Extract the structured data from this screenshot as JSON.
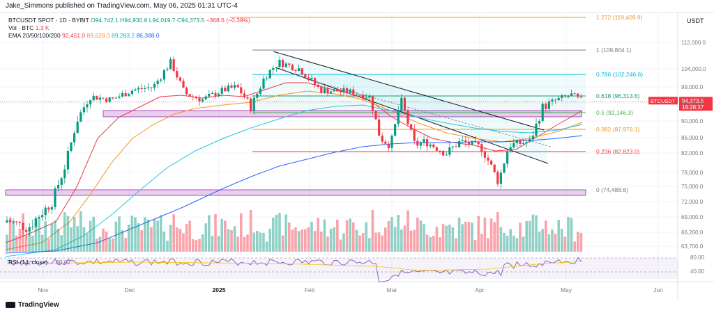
{
  "header": {
    "publisher": "Jake_Simmons published on TradingView.com, May 06, 2025 01:31 UTC-4"
  },
  "legend": {
    "symbol": "BTCUSDT SPOT · 1D · BYBIT",
    "open": "O94,742.1",
    "high": "H94,930.8",
    "low": "L94,019.7",
    "close": "C94,373.5",
    "change": "−368.6 (−0.39%)",
    "vol_label": "Vol · BTC",
    "vol_value": "1.3 K",
    "ema_label": "EMA 20/50/100/200",
    "ema20": "92,451.0",
    "ema50": "89,628.0",
    "ema100": "89,283.2",
    "ema200": "86,388.0"
  },
  "price_axis": {
    "currency": "USDT",
    "labels": [
      "112,000.0",
      "104,000.0",
      "99,000.0",
      "94,000.0",
      "90,000.0",
      "86,000.0",
      "82,000.0",
      "78,000.0",
      "75,000.0",
      "72,000.0",
      "69,000.0",
      "66,200.0",
      "63,700.0"
    ]
  },
  "current_price": {
    "symbol": "BTCUSDT",
    "price": "94,373.5",
    "countdown": "18:28:37"
  },
  "fib_levels": [
    {
      "label": "1.272 (119,409.9)",
      "color": "#f7931a"
    },
    {
      "label": "1 (109,804.1)",
      "color": "#787b86"
    },
    {
      "label": "0.786 (102,246.6)",
      "color": "#00bcd4"
    },
    {
      "label": "0.618 (96,313.6)",
      "color": "#089981"
    },
    {
      "label": "0.5 (92,146.3)",
      "color": "#4caf50"
    },
    {
      "label": "0.382 (87,979.1)",
      "color": "#f7931a"
    },
    {
      "label": "0.236 (82,823.0)",
      "color": "#f23645"
    },
    {
      "label": "0 (74,488.6)",
      "color": "#787b86"
    }
  ],
  "rsi": {
    "label": "RSI (14, close)",
    "value": "60.02",
    "levels": [
      "80.00",
      "40.00"
    ]
  },
  "time_axis": [
    "Nov",
    "Dec",
    "2025",
    "Feb",
    "Mar",
    "Apr",
    "May",
    "Jun"
  ],
  "footer": {
    "brand": "TradingView"
  },
  "colors": {
    "up": "#089981",
    "down": "#f23645",
    "ema20": "#f23645",
    "ema50": "#f7931a",
    "ema100": "#26c6da",
    "ema200": "#2962ff",
    "zone": "#ce93d8"
  }
}
